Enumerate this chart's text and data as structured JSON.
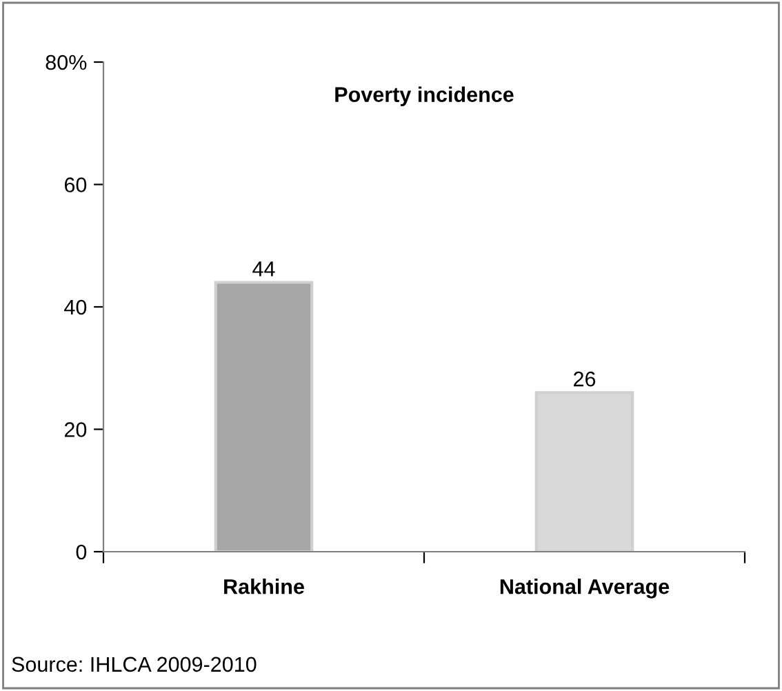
{
  "chart_data": {
    "type": "bar",
    "title": "Poverty incidence",
    "categories": [
      "Rakhine",
      "National Average"
    ],
    "values": [
      44,
      26
    ],
    "colors": [
      "#a6a6a6",
      "#d9d9d9"
    ],
    "ylim": [
      0,
      80
    ],
    "yticks": [
      0,
      20,
      40,
      60,
      {
        "value": 80,
        "label": "80%"
      }
    ],
    "data_labels": true,
    "grid": false,
    "annotations": [
      "Source: IHLCA 2009-2010"
    ]
  }
}
